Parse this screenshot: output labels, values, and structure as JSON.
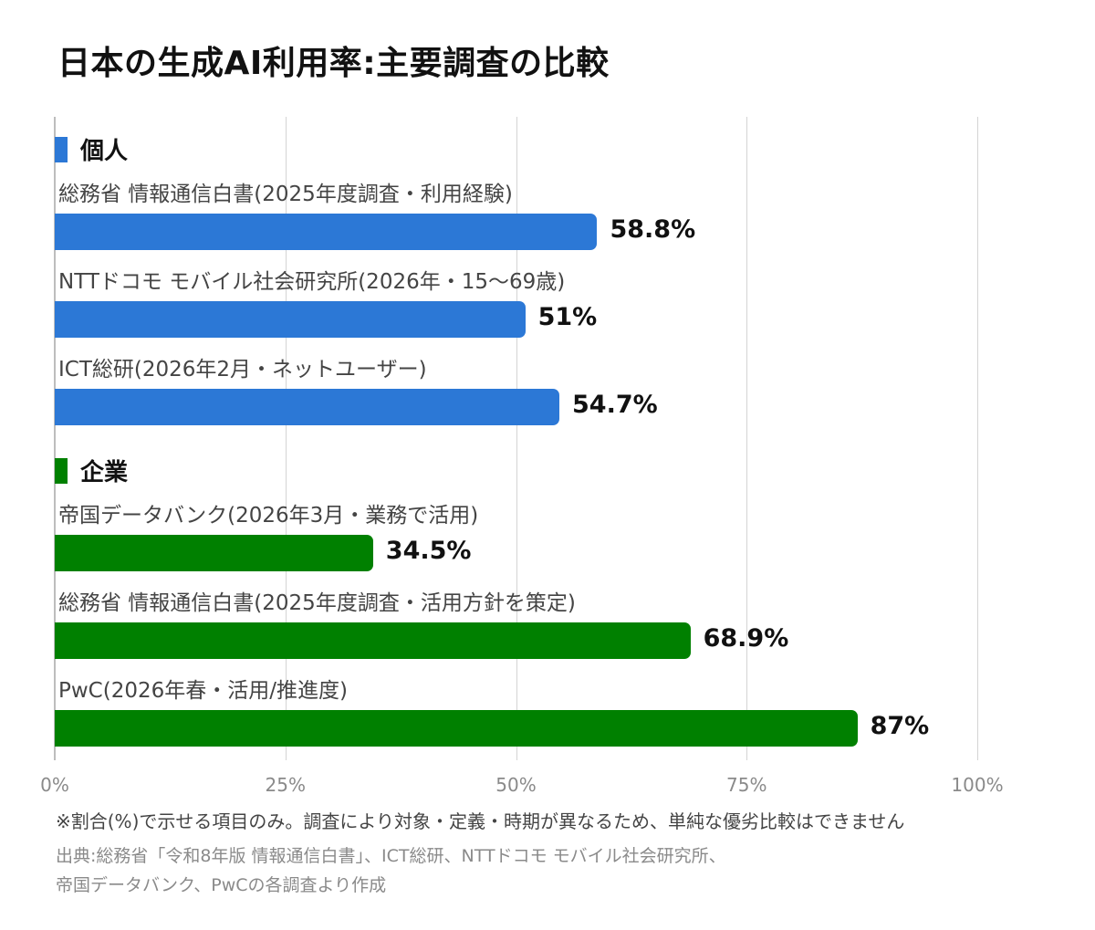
{
  "title": "日本の生成AI利用率:主要調査の比較",
  "colors": {
    "individual": "#2c78d6",
    "business": "#008000"
  },
  "chart_data": {
    "type": "bar",
    "orientation": "horizontal",
    "xlim": [
      0,
      100
    ],
    "xticks": [
      "0%",
      "25%",
      "50%",
      "75%",
      "100%"
    ],
    "grid": true,
    "groups": [
      {
        "name": "個人",
        "color": "#2c78d6",
        "items": [
          {
            "label": "総務省 情報通信白書(2025年度調査・利用経験)",
            "value": 58.8,
            "value_label": "58.8%"
          },
          {
            "label": "NTTドコモ モバイル社会研究所(2026年・15〜69歳)",
            "value": 51,
            "value_label": "51%"
          },
          {
            "label": "ICT総研(2026年2月・ネットユーザー)",
            "value": 54.7,
            "value_label": "54.7%"
          }
        ]
      },
      {
        "name": "企業",
        "color": "#008000",
        "items": [
          {
            "label": "帝国データバンク(2026年3月・業務で活用)",
            "value": 34.5,
            "value_label": "34.5%"
          },
          {
            "label": "総務省 情報通信白書(2025年度調査・活用方針を策定)",
            "value": 68.9,
            "value_label": "68.9%"
          },
          {
            "label": "PwC(2026年春・活用/推進度)",
            "value": 87,
            "value_label": "87%"
          }
        ]
      }
    ]
  },
  "note": "※割合(%)で示せる項目のみ。調査により対象・定義・時期が異なるため、単純な優劣比較はできません",
  "source_lines": [
    "出典:総務省「令和8年版 情報通信白書」、ICT総研、NTTドコモ モバイル社会研究所、",
    "帝国データバンク、PwCの各調査より作成"
  ]
}
